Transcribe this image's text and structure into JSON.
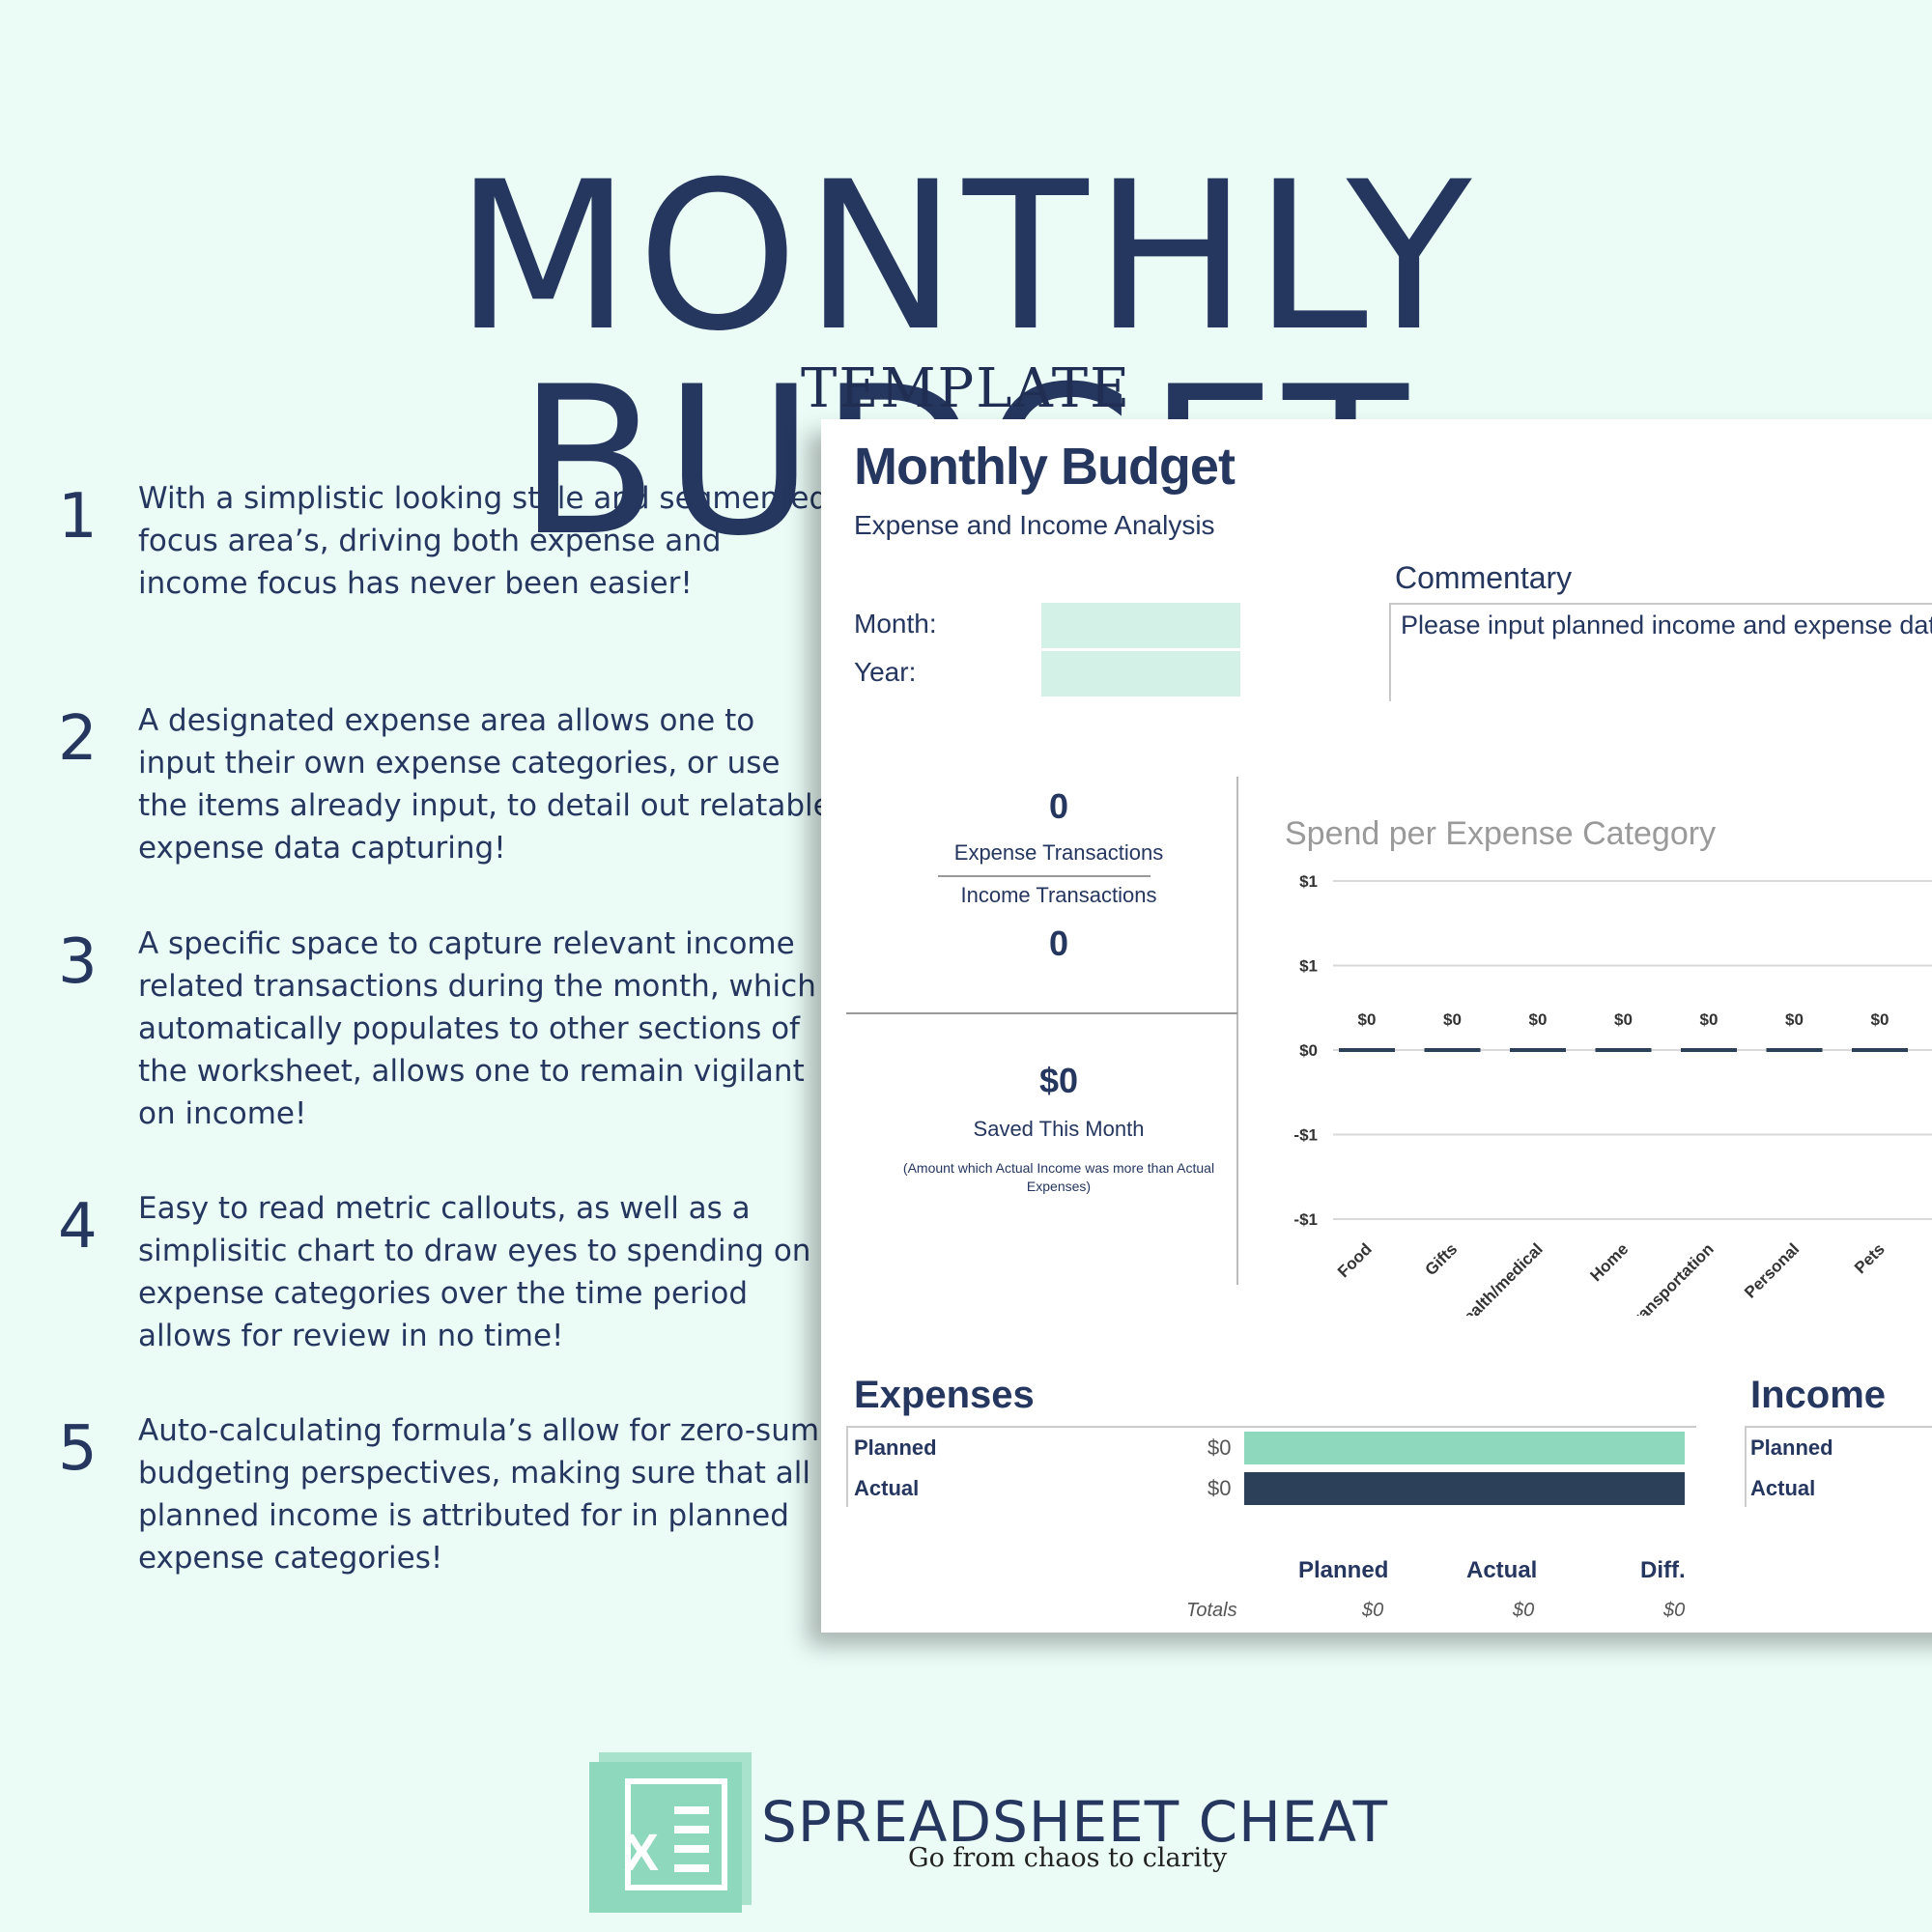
{
  "hero": {
    "title": "MONTHLY BUDGET",
    "subtitle": "TEMPLATE"
  },
  "features": [
    {
      "num": "1",
      "text": "With a simplistic looking style and segmented focus area’s, driving both expense and income focus has never been easier!"
    },
    {
      "num": "2",
      "text": "A designated expense area allows one to input their own expense categories, or use the items already input, to detail out relatable expense data capturing!"
    },
    {
      "num": "3",
      "text": "A specific space to capture relevant income related transactions during the month, which automatically populates to other sections of the worksheet, allows one to remain vigilant on income!"
    },
    {
      "num": "4",
      "text": "Easy to read metric callouts, as well as a simplisitic chart to draw eyes to spending on expense categories over the time period allows for review in no time!"
    },
    {
      "num": "5",
      "text": "Auto-calculating formula’s allow for zero-sum budgeting perspectives, making sure that all planned income is attributed for in planned expense categories!"
    }
  ],
  "sheet": {
    "title": "Monthly Budget",
    "subtitle": "Expense and Income Analysis",
    "month_label": "Month:",
    "year_label": "Year:",
    "month_value": "",
    "year_value": "",
    "commentary_label": "Commentary",
    "commentary_text": "Please input planned income and expense data!",
    "expense_tx_count": "0",
    "expense_tx_label": "Expense Transactions",
    "income_tx_label": "Income Transactions",
    "income_tx_count": "0",
    "saved_value": "$0",
    "saved_label": "Saved This Month",
    "saved_note": "(Amount which Actual Income was more than Actual Expenses)",
    "expenses": {
      "title": "Expenses",
      "planned_label": "Planned",
      "actual_label": "Actual",
      "planned_value": "$0",
      "actual_value": "$0",
      "planned_color": "#8ed8bd",
      "actual_color": "#2d4059"
    },
    "income": {
      "title": "Income",
      "planned_label": "Planned",
      "actual_label": "Actual"
    },
    "totals": {
      "planned_head": "Planned",
      "actual_head": "Actual",
      "diff_head": "Diff.",
      "row_label": "Totals",
      "planned": "$0",
      "actual": "$0",
      "diff": "$0"
    }
  },
  "chart_data": {
    "type": "bar",
    "title": "Spend per Expense Category",
    "categories": [
      "Food",
      "Gifts",
      "Health/medical",
      "Home",
      "Transportation",
      "Personal",
      "Pets"
    ],
    "values": [
      0,
      0,
      0,
      0,
      0,
      0,
      0
    ],
    "data_labels": [
      "$0",
      "$0",
      "$0",
      "$0",
      "$0",
      "$0",
      "$0"
    ],
    "y_ticks": [
      "$1",
      "$1",
      "$0",
      "-$1",
      "-$1"
    ],
    "ylim": [
      -1,
      1
    ],
    "grid": true,
    "bar_color": "#2d4059"
  },
  "brand": {
    "name": "SPREADSHEET CHEAT",
    "tagline": "Go from chaos to clarity",
    "logo_letter": "X",
    "logo_color": "#8ed8bd"
  }
}
